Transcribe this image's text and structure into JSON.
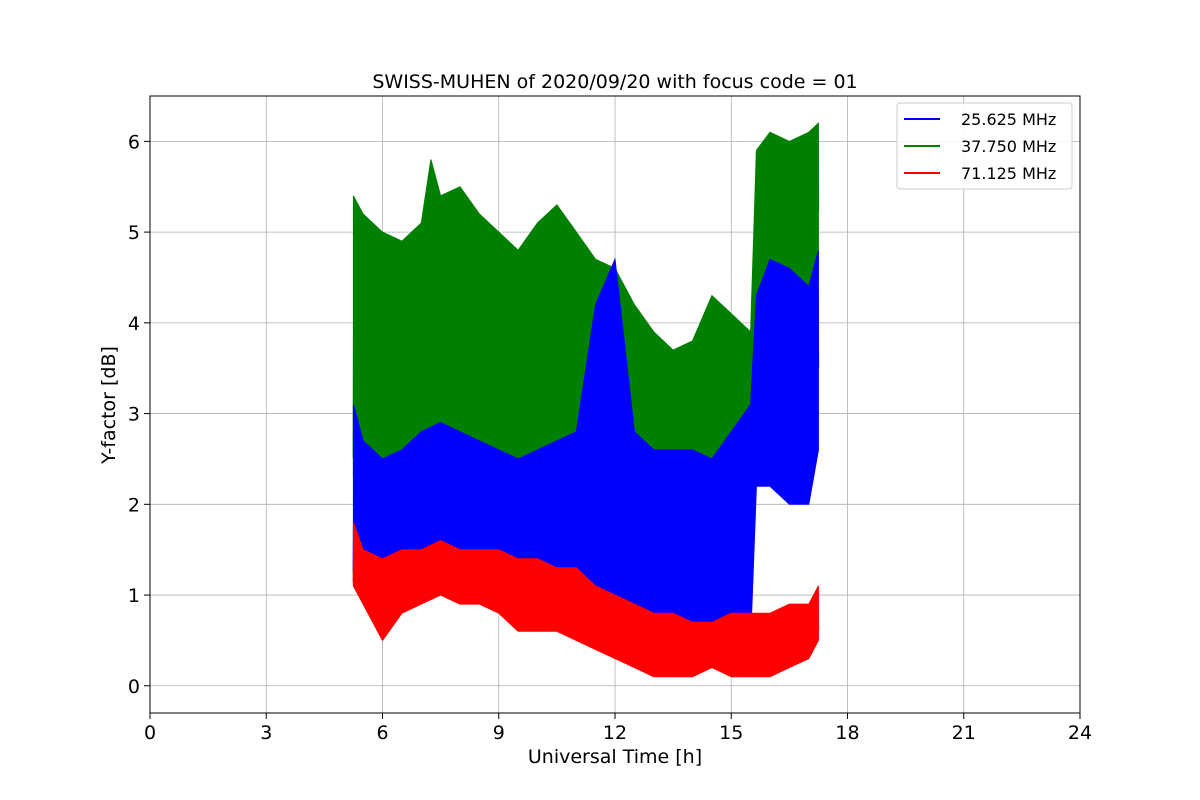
{
  "chart_data": {
    "type": "line",
    "title": "SWISS-MUHEN of 2020/09/20 with focus code = 01",
    "xlabel": "Universal Time [h]",
    "ylabel": "Y-factor [dB]",
    "xlim": [
      0,
      24
    ],
    "ylim": [
      -0.3,
      6.5
    ],
    "xticks": [
      0,
      3,
      6,
      9,
      12,
      15,
      18,
      21,
      24
    ],
    "xtick_labels": [
      "0",
      "3",
      "6",
      "9",
      "12",
      "15",
      "18",
      "21",
      "24"
    ],
    "yticks": [
      0,
      1,
      2,
      3,
      4,
      5,
      6
    ],
    "ytick_labels": [
      "0",
      "1",
      "2",
      "3",
      "4",
      "5",
      "6"
    ],
    "grid": true,
    "legend_position": "top-right",
    "series": [
      {
        "name": "25.625 MHz",
        "color": "#0000ff",
        "x": [
          5.25,
          5.5,
          6.0,
          6.5,
          7.0,
          7.5,
          8.0,
          8.5,
          9.0,
          9.5,
          10.0,
          10.5,
          11.0,
          11.5,
          12.0,
          12.5,
          13.0,
          13.5,
          14.0,
          14.5,
          15.0,
          15.5,
          15.65,
          16.0,
          16.5,
          17.0,
          17.25
        ],
        "low": [
          1.1,
          1.0,
          0.8,
          1.2,
          1.2,
          1.3,
          1.3,
          1.2,
          1.3,
          1.2,
          1.1,
          1.0,
          1.0,
          0.9,
          0.8,
          0.7,
          0.6,
          0.5,
          0.3,
          0.2,
          0.4,
          0.5,
          2.2,
          2.2,
          2.0,
          2.0,
          2.6
        ],
        "high": [
          3.1,
          2.7,
          2.5,
          2.6,
          2.8,
          2.9,
          2.8,
          2.7,
          2.6,
          2.5,
          2.6,
          2.7,
          2.8,
          4.2,
          4.7,
          2.8,
          2.6,
          2.6,
          2.6,
          2.5,
          2.8,
          3.1,
          4.3,
          4.7,
          4.6,
          4.4,
          4.8
        ]
      },
      {
        "name": "37.750 MHz",
        "color": "#008000",
        "x": [
          5.25,
          5.5,
          6.0,
          6.5,
          7.0,
          7.25,
          7.5,
          8.0,
          8.5,
          9.0,
          9.5,
          10.0,
          10.5,
          11.0,
          11.5,
          12.0,
          12.5,
          13.0,
          13.5,
          14.0,
          14.5,
          15.0,
          15.5,
          15.65,
          16.0,
          16.5,
          17.0,
          17.25
        ],
        "low": [
          2.3,
          2.6,
          2.4,
          2.5,
          2.6,
          2.8,
          2.7,
          2.8,
          2.6,
          2.4,
          2.2,
          2.0,
          2.2,
          2.4,
          2.2,
          1.9,
          1.8,
          1.5,
          1.4,
          0.1,
          1.3,
          1.6,
          2.3,
          4.0,
          4.3,
          4.2,
          4.1,
          4.5
        ],
        "high": [
          5.4,
          5.2,
          5.0,
          4.9,
          5.1,
          5.8,
          5.4,
          5.5,
          5.2,
          5.0,
          4.8,
          5.1,
          5.3,
          5.0,
          4.7,
          4.6,
          4.2,
          3.9,
          3.7,
          3.8,
          4.3,
          4.1,
          3.9,
          5.9,
          6.1,
          6.0,
          6.1,
          6.2
        ]
      },
      {
        "name": "71.125 MHz",
        "color": "#ff0000",
        "x": [
          5.25,
          5.5,
          6.0,
          6.5,
          7.0,
          7.5,
          8.0,
          8.5,
          9.0,
          9.5,
          10.0,
          10.5,
          11.0,
          11.5,
          12.0,
          12.5,
          13.0,
          13.5,
          14.0,
          14.5,
          15.0,
          15.5,
          16.0,
          16.5,
          17.0,
          17.25
        ],
        "low": [
          1.1,
          0.9,
          0.5,
          0.8,
          0.9,
          1.0,
          0.9,
          0.9,
          0.8,
          0.6,
          0.6,
          0.6,
          0.5,
          0.4,
          0.3,
          0.2,
          0.1,
          0.1,
          0.1,
          0.2,
          0.1,
          0.1,
          0.1,
          0.2,
          0.3,
          0.5
        ],
        "high": [
          1.8,
          1.5,
          1.4,
          1.5,
          1.5,
          1.6,
          1.5,
          1.5,
          1.5,
          1.4,
          1.4,
          1.3,
          1.3,
          1.1,
          1.0,
          0.9,
          0.8,
          0.8,
          0.7,
          0.7,
          0.8,
          0.8,
          0.8,
          0.9,
          0.9,
          1.1
        ]
      }
    ]
  }
}
